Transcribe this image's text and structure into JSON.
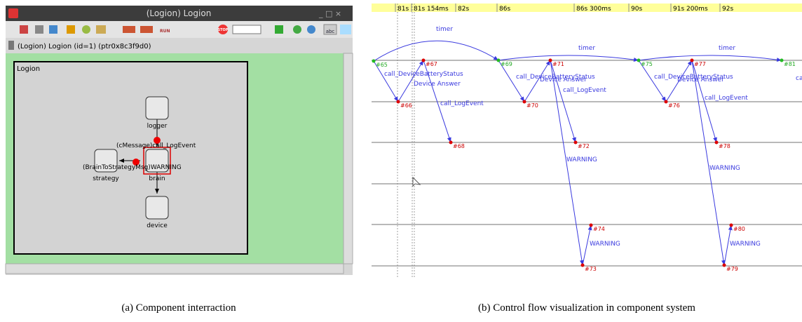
{
  "left": {
    "window_title": "(Logion) Logion",
    "toolbar": [
      "RUN",
      "STOP",
      "abc"
    ],
    "info": "(Logion) Logion (id=1) (ptr0x8c3f9d0)",
    "canvas_label": "Logion",
    "nodes": [
      "logger",
      "strategy",
      "brain",
      "device"
    ],
    "messages": [
      "(cMessage)call_LogEvent",
      "(BrainToStrategyMsg)WARNING"
    ],
    "caption": "(a) Component interraction"
  },
  "right": {
    "ruler": [
      "81s",
      "81s 154ms",
      "82s",
      "86s",
      "86s 300ms",
      "90s",
      "91s 200ms",
      "92s"
    ],
    "events": [
      "#65",
      "#66",
      "#67",
      "#68",
      "#69",
      "#70",
      "#71",
      "#72",
      "#73",
      "#74",
      "#75",
      "#76",
      "#77",
      "#78",
      "#79",
      "#80",
      "#81"
    ],
    "messages": [
      "timer",
      "timer",
      "timer",
      "call_DeviceBatteryStatus",
      "Device Answer",
      "call_LogEvent",
      "call_DeviceBatteryStatus",
      "Device Answer",
      "call_LogEvent",
      "call_DeviceBatteryStatus",
      "Device Answer",
      "call_LogEvent",
      "WARNING",
      "WARNING",
      "WARNING",
      "WARNING",
      "ca"
    ],
    "caption": "(b) Control flow visualization in component system"
  }
}
